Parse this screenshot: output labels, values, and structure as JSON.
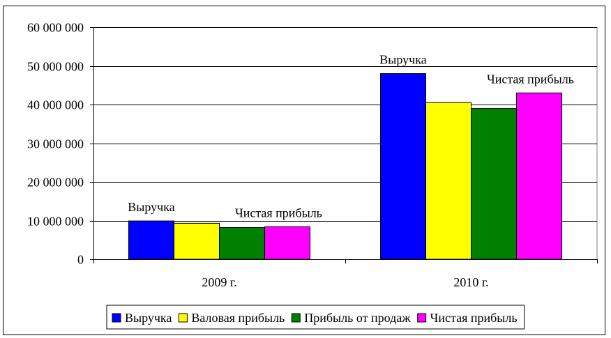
{
  "chart_data": {
    "type": "bar",
    "categories": [
      "2009 г.",
      "2010 г."
    ],
    "series": [
      {
        "name": "Выручка",
        "color": "#0000ff",
        "values": [
          9900000,
          48000000
        ]
      },
      {
        "name": "Валовая прибыль",
        "color": "#ffff00",
        "values": [
          9300000,
          40500000
        ]
      },
      {
        "name": "Прибыль от продаж",
        "color": "#008000",
        "values": [
          8200000,
          39000000
        ]
      },
      {
        "name": "Чистая прибыль",
        "color": "#ff00ff",
        "values": [
          8400000,
          43000000
        ]
      }
    ],
    "ylim": [
      0,
      60000000
    ],
    "yticks": [
      "0",
      "10 000 000",
      "20 000 000",
      "30 000 000",
      "40 000 000",
      "50 000 000",
      "60 000 000"
    ],
    "grid": true,
    "legend": "bottom",
    "annotations": [
      {
        "text": "Выручка",
        "category": 0,
        "series": 0
      },
      {
        "text": "Чистая прибыль",
        "category": 0,
        "series": 3
      },
      {
        "text": "Выручка",
        "category": 1,
        "series": 0
      },
      {
        "text": "Чистая прибыль",
        "category": 1,
        "series": 3
      }
    ]
  }
}
